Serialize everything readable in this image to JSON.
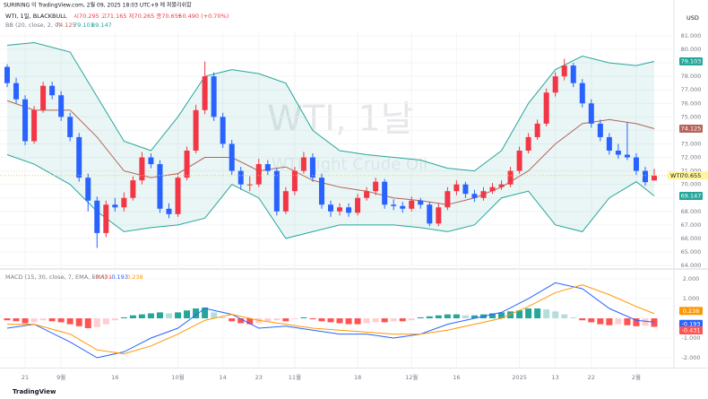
{
  "header": {
    "published": "SURIRING 이 TradingView.com, 2월 09, 2025 18:03 UTC+9 에 퍼블리쉬함",
    "symbol": "WTI, 1일, BLACKBULL",
    "ohlc": "시70.295 고71.165 저70.265 종70.655",
    "change": "+0.490 (+0.70%)",
    "watermark": "WTI, 1날",
    "watermark_sub": "WTI Light Crude Oil",
    "brand": "TradingView"
  },
  "chart_data": [
    {
      "type": "candlestick",
      "currency": "USD",
      "symbol_badge": "WTI",
      "indicator": "BB (20, close, 2, 0)",
      "up_color": "#f23645",
      "down_color": "#2962ff",
      "band_color": "#26a69a",
      "basis_color": "#b5635a",
      "ylim": [
        63.87,
        81.33
      ],
      "yticks": [
        {
          "value": 64,
          "label": "64.000"
        },
        {
          "value": 65,
          "label": "65.000"
        },
        {
          "value": 66,
          "label": "66.000"
        },
        {
          "value": 67,
          "label": "67.000"
        },
        {
          "value": 68,
          "label": "68.000"
        },
        {
          "value": 69,
          "label": "69.000"
        },
        {
          "value": 70,
          "label": "70.000"
        },
        {
          "value": 71,
          "label": "71.000"
        },
        {
          "value": 72,
          "label": "72.000"
        },
        {
          "value": 73,
          "label": "73.000"
        },
        {
          "value": 74,
          "label": "74.000"
        },
        {
          "value": 75,
          "label": "75.000"
        },
        {
          "value": 76,
          "label": "76.000"
        },
        {
          "value": 77,
          "label": "77.000"
        },
        {
          "value": 78,
          "label": "78.000"
        },
        {
          "value": 79,
          "label": "79.000"
        },
        {
          "value": 80,
          "label": "80.000"
        },
        {
          "value": 81,
          "label": "81.000"
        }
      ],
      "xticks": [
        {
          "value": 2,
          "label": "21"
        },
        {
          "value": 6,
          "label": "9월"
        },
        {
          "value": 12,
          "label": "16"
        },
        {
          "value": 19,
          "label": "10월"
        },
        {
          "value": 24,
          "label": "14"
        },
        {
          "value": 28,
          "label": "23"
        },
        {
          "value": 32,
          "label": "11월"
        },
        {
          "value": 39,
          "label": "18"
        },
        {
          "value": 45,
          "label": "12월"
        },
        {
          "value": 50,
          "label": "16"
        },
        {
          "value": 57,
          "label": "2025"
        },
        {
          "value": 61,
          "label": "13"
        },
        {
          "value": 65,
          "label": "22"
        },
        {
          "value": 70,
          "label": "2월"
        }
      ],
      "candles": [
        [
          78.7,
          78.9,
          77.2,
          77.5
        ],
        [
          77.5,
          77.9,
          76.0,
          76.3
        ],
        [
          76.3,
          76.6,
          72.9,
          73.2
        ],
        [
          73.2,
          75.8,
          73.0,
          75.5
        ],
        [
          75.5,
          77.6,
          75.3,
          77.3
        ],
        [
          77.3,
          77.6,
          76.3,
          76.6
        ],
        [
          76.6,
          76.9,
          74.7,
          75.0
        ],
        [
          75.0,
          75.3,
          73.2,
          73.5
        ],
        [
          73.5,
          73.8,
          70.2,
          70.5
        ],
        [
          70.5,
          70.8,
          68.0,
          68.8
        ],
        [
          68.8,
          69.1,
          65.3,
          66.4
        ],
        [
          66.4,
          68.8,
          66.1,
          68.5
        ],
        [
          68.5,
          69.0,
          68.0,
          68.3
        ],
        [
          68.3,
          69.4,
          68.0,
          69.0
        ],
        [
          69.0,
          70.6,
          68.8,
          70.3
        ],
        [
          70.3,
          72.4,
          70.0,
          72.0
        ],
        [
          72.0,
          72.3,
          71.2,
          71.5
        ],
        [
          71.5,
          71.8,
          67.9,
          68.2
        ],
        [
          68.2,
          68.6,
          67.5,
          67.8
        ],
        [
          67.8,
          70.8,
          67.6,
          70.5
        ],
        [
          70.5,
          72.8,
          70.3,
          72.5
        ],
        [
          72.5,
          75.9,
          72.3,
          75.5
        ],
        [
          75.5,
          79.1,
          75.2,
          78.0
        ],
        [
          78.0,
          78.3,
          74.7,
          75.0
        ],
        [
          75.0,
          75.3,
          72.7,
          73.0
        ],
        [
          73.0,
          73.3,
          70.7,
          71.0
        ],
        [
          71.0,
          71.3,
          69.6,
          70.0
        ],
        [
          70.0,
          70.6,
          69.5,
          70.0
        ],
        [
          70.0,
          71.9,
          69.8,
          71.5
        ],
        [
          71.5,
          71.8,
          70.7,
          71.0
        ],
        [
          71.0,
          71.2,
          67.7,
          68.0
        ],
        [
          68.0,
          69.8,
          67.8,
          69.5
        ],
        [
          69.5,
          71.3,
          69.2,
          71.0
        ],
        [
          71.0,
          72.4,
          70.8,
          72.0
        ],
        [
          72.0,
          72.3,
          70.2,
          70.5
        ],
        [
          70.5,
          70.8,
          68.2,
          68.5
        ],
        [
          68.5,
          68.8,
          67.6,
          68.0
        ],
        [
          68.0,
          68.6,
          67.7,
          68.3
        ],
        [
          68.3,
          68.6,
          67.6,
          67.9
        ],
        [
          67.9,
          69.3,
          67.7,
          69.0
        ],
        [
          69.0,
          69.8,
          68.8,
          69.5
        ],
        [
          69.5,
          70.5,
          69.2,
          70.2
        ],
        [
          70.2,
          70.4,
          68.2,
          68.5
        ],
        [
          68.5,
          68.9,
          68.1,
          68.4
        ],
        [
          68.4,
          68.7,
          67.9,
          68.2
        ],
        [
          68.2,
          69.1,
          68.0,
          68.8
        ],
        [
          68.8,
          69.0,
          68.2,
          68.5
        ],
        [
          68.5,
          68.7,
          66.9,
          67.1
        ],
        [
          67.1,
          68.6,
          66.9,
          68.3
        ],
        [
          68.3,
          69.8,
          68.1,
          69.5
        ],
        [
          69.5,
          70.3,
          69.2,
          70.0
        ],
        [
          70.0,
          70.2,
          69.0,
          69.3
        ],
        [
          69.3,
          69.6,
          68.7,
          69.0
        ],
        [
          69.0,
          69.8,
          68.8,
          69.5
        ],
        [
          69.5,
          70.1,
          69.3,
          69.8
        ],
        [
          69.8,
          70.3,
          69.6,
          70.0
        ],
        [
          70.0,
          71.3,
          69.8,
          71.0
        ],
        [
          71.0,
          72.8,
          70.8,
          72.5
        ],
        [
          72.5,
          73.8,
          72.3,
          73.5
        ],
        [
          73.5,
          74.8,
          73.3,
          74.5
        ],
        [
          74.5,
          77.1,
          74.3,
          76.8
        ],
        [
          76.8,
          78.3,
          76.5,
          78.0
        ],
        [
          78.0,
          79.3,
          77.7,
          78.8
        ],
        [
          78.8,
          79.0,
          77.2,
          77.5
        ],
        [
          77.5,
          77.8,
          75.7,
          76.0
        ],
        [
          76.0,
          76.3,
          74.2,
          74.5
        ],
        [
          74.5,
          74.8,
          73.2,
          73.5
        ],
        [
          73.5,
          73.8,
          72.2,
          72.5
        ],
        [
          72.5,
          73.0,
          71.9,
          72.2
        ],
        [
          72.2,
          74.6,
          71.8,
          72.0
        ],
        [
          72.0,
          72.3,
          70.7,
          71.0
        ],
        [
          71.0,
          71.3,
          69.9,
          70.165
        ],
        [
          70.295,
          71.165,
          70.265,
          70.655
        ]
      ],
      "bands": {
        "x": [
          0,
          3,
          7,
          10,
          13,
          16,
          19,
          22,
          25,
          28,
          31,
          34,
          37,
          40,
          43,
          46,
          49,
          52,
          55,
          58,
          61,
          64,
          67,
          70,
          72
        ],
        "upper": [
          80.3,
          80.5,
          79.8,
          76.5,
          73.2,
          72.5,
          75.0,
          78.0,
          78.5,
          78.2,
          77.5,
          74.0,
          72.5,
          72.2,
          72.0,
          71.8,
          71.2,
          71.0,
          72.5,
          76.0,
          78.5,
          79.5,
          79.0,
          78.8,
          79.103
        ],
        "basis": [
          76.2,
          75.5,
          75.5,
          73.5,
          71.0,
          70.5,
          70.8,
          72.0,
          72.0,
          71.0,
          71.3,
          70.3,
          69.8,
          69.5,
          69.0,
          68.8,
          68.5,
          69.0,
          69.8,
          71.0,
          73.0,
          74.5,
          74.8,
          74.5,
          74.125
        ],
        "lower": [
          72.2,
          71.5,
          70.0,
          68.0,
          66.5,
          66.8,
          67.0,
          67.5,
          70.0,
          69.0,
          66.0,
          66.5,
          67.0,
          67.0,
          67.0,
          66.8,
          66.5,
          67.0,
          69.0,
          69.5,
          67.0,
          66.5,
          69.0,
          70.2,
          69.147
        ]
      }
    },
    {
      "type": "macd",
      "indicator": "MACD (15, 30, close, 7, EMA, EMA)",
      "macd_color": "#2962ff",
      "signal_color": "#ff9800",
      "hist_colors": [
        "#26a69a",
        "#b2dfdb",
        "#ff5252",
        "#ffcdd2"
      ],
      "ylim": [
        -2.5,
        2.41
      ],
      "yticks": [
        {
          "value": 2,
          "label": "2.000"
        },
        {
          "value": 1,
          "label": "1.000"
        },
        {
          "value": -1,
          "label": "-1.000"
        },
        {
          "value": -2,
          "label": "-2.000"
        }
      ],
      "histogram": [
        -0.1,
        -0.15,
        -0.25,
        -0.2,
        -0.1,
        -0.15,
        -0.2,
        -0.3,
        -0.4,
        -0.5,
        -0.45,
        -0.3,
        -0.1,
        0.05,
        0.15,
        0.2,
        0.25,
        0.3,
        0.25,
        0.3,
        0.4,
        0.5,
        0.55,
        0.3,
        0.05,
        -0.15,
        -0.25,
        -0.3,
        -0.25,
        -0.15,
        -0.1,
        -0.15,
        -0.05,
        0.05,
        -0.05,
        -0.15,
        -0.2,
        -0.25,
        -0.3,
        -0.3,
        -0.25,
        -0.2,
        -0.2,
        -0.15,
        -0.15,
        -0.1,
        0.05,
        0.1,
        0.15,
        0.2,
        0.2,
        0.15,
        0.15,
        0.2,
        0.25,
        0.3,
        0.35,
        0.4,
        0.5,
        0.5,
        0.45,
        0.35,
        0.2,
        0.05,
        -0.1,
        -0.2,
        -0.3,
        -0.35,
        -0.3,
        -0.35,
        -0.4,
        -0.38,
        -0.431
      ],
      "x": [
        0,
        3,
        7,
        10,
        13,
        16,
        19,
        22,
        25,
        28,
        31,
        34,
        37,
        40,
        43,
        46,
        49,
        52,
        55,
        58,
        61,
        64,
        67,
        70,
        72
      ],
      "macd": [
        -0.5,
        -0.3,
        -1.2,
        -2.0,
        -1.7,
        -1.0,
        -0.5,
        0.5,
        0.2,
        -0.5,
        -0.4,
        -0.6,
        -0.8,
        -0.8,
        -1.0,
        -0.8,
        -0.3,
        0.0,
        0.3,
        1.0,
        1.8,
        1.5,
        0.5,
        -0.1,
        -0.193
      ],
      "signal": [
        -0.3,
        -0.3,
        -0.8,
        -1.6,
        -1.8,
        -1.4,
        -0.8,
        -0.1,
        0.2,
        -0.1,
        -0.3,
        -0.5,
        -0.6,
        -0.7,
        -0.8,
        -0.8,
        -0.6,
        -0.3,
        0.0,
        0.6,
        1.3,
        1.7,
        1.2,
        0.6,
        0.238
      ]
    }
  ]
}
